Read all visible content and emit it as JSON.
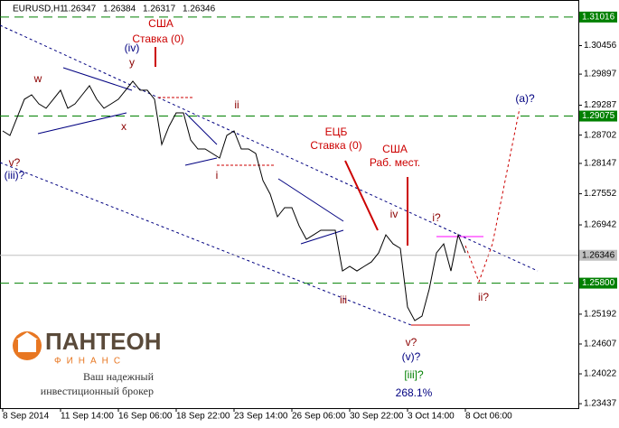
{
  "chart_data": {
    "type": "line",
    "title": "EURUSD,H1",
    "ohlc": [
      "1.26347",
      "1.26384",
      "1.26317",
      "1.26346"
    ],
    "color": "#000000",
    "x": [
      0,
      1,
      2,
      3,
      4,
      5,
      6,
      7,
      8,
      9,
      10,
      11,
      12,
      13,
      14,
      15,
      16,
      17,
      18,
      19,
      20,
      21,
      22,
      23,
      24,
      25,
      26,
      27,
      28,
      29,
      30,
      31,
      32,
      33,
      34,
      35,
      36,
      37,
      38,
      39,
      40,
      41,
      42,
      43,
      44,
      45,
      46,
      47,
      48,
      49,
      50,
      51,
      52,
      53,
      54,
      55,
      56,
      57,
      58,
      59,
      60,
      61,
      62,
      63,
      64
    ],
    "values": [
      1.28784,
      1.28695,
      1.2905,
      1.29404,
      1.29492,
      1.29315,
      1.29227,
      1.29404,
      1.29581,
      1.29227,
      1.29315,
      1.29492,
      1.2967,
      1.29404,
      1.29227,
      1.29315,
      1.29404,
      1.29581,
      1.29758,
      1.29581,
      1.29581,
      1.29404,
      1.28518,
      1.28873,
      1.29138,
      1.29138,
      1.28607,
      1.2843,
      1.2843,
      1.28341,
      1.28253,
      1.28695,
      1.28784,
      1.2843,
      1.2843,
      1.28341,
      1.2781,
      1.27544,
      1.27102,
      1.27279,
      1.27279,
      1.26924,
      1.26659,
      1.26747,
      1.26836,
      1.26836,
      1.26836,
      1.26039,
      1.26128,
      1.26039,
      1.26128,
      1.26216,
      1.26393,
      1.26747,
      1.2657,
      1.26482,
      1.25331,
      1.25065,
      1.25153,
      1.25685,
      1.26393,
      1.2657,
      1.26039,
      1.26747,
      1.26393
    ],
    "xlim": [
      0,
      80
    ],
    "xticks": [
      {
        "value": 0,
        "label": "8 Sep 2014"
      },
      {
        "value": 8,
        "label": "11 Sep 14:00"
      },
      {
        "value": 16,
        "label": "16 Sep 06:00"
      },
      {
        "value": 24,
        "label": "18 Sep 22:00"
      },
      {
        "value": 32,
        "label": "23 Sep 14:00"
      },
      {
        "value": 40,
        "label": "26 Sep 06:00"
      },
      {
        "value": 48,
        "label": "30 Sep 22:00"
      },
      {
        "value": 56,
        "label": "3 Oct 14:00"
      },
      {
        "value": 64,
        "label": "8 Oct 06:00"
      }
    ],
    "ylim": [
      1.2335,
      1.3135
    ],
    "yticks": [
      1.30456,
      1.29897,
      1.29287,
      1.28702,
      1.28147,
      1.27552,
      1.26942,
      1.25192,
      1.24607,
      1.24022,
      1.23437
    ],
    "levels": [
      {
        "value": 1.31016,
        "color": "#008000",
        "dashed": true
      },
      {
        "value": 1.29075,
        "color": "#008000",
        "dashed": true
      },
      {
        "value": {
          "value": 1.258,
          "label": "1.25800"
        },
        "color": "#008000",
        "dashed": true
      },
      {
        "value": 1.26346,
        "color": "#c0c0c0",
        "dashed": false
      }
    ],
    "annotations": [
      {
        "text": "w",
        "color": "#8b0000"
      },
      {
        "text": "x",
        "color": "#8b0000"
      },
      {
        "text": "y",
        "color": "#8b0000"
      },
      {
        "text": "(iv)",
        "color": "#000080"
      },
      {
        "text": "США",
        "color": "#cc0000"
      },
      {
        "text": "Ставка (0)",
        "color": "#cc0000"
      },
      {
        "text": "ii",
        "color": "#8b0000"
      },
      {
        "text": "i",
        "color": "#8b0000"
      },
      {
        "text": "v?",
        "color": "#8b0000"
      },
      {
        "text": "(iii)?",
        "color": "#000080"
      },
      {
        "text": "ЕЦБ",
        "color": "#cc0000"
      },
      {
        "text": "Ставка (0)",
        "color": "#cc0000"
      },
      {
        "text": "США",
        "color": "#cc0000"
      },
      {
        "text": "Раб. мест.",
        "color": "#cc0000"
      },
      {
        "text": "iv",
        "color": "#8b0000"
      },
      {
        "text": "i?",
        "color": "#8b0000"
      },
      {
        "text": "iii",
        "color": "#8b0000"
      },
      {
        "text": "ii?",
        "color": "#8b0000"
      },
      {
        "text": "(a)?",
        "color": "#000080"
      },
      {
        "text": "v?",
        "color": "#8b0000"
      },
      {
        "text": "(v)?",
        "color": "#000080"
      },
      {
        "text": "[iii]?",
        "color": "#008000"
      },
      {
        "text": "268.1%",
        "color": "#000080"
      }
    ]
  },
  "logo": {
    "name": "ПАНТЕОН",
    "sub": "ФИНАНС",
    "line1": "Ваш надежный",
    "line2": "инвестиционный брокер"
  }
}
